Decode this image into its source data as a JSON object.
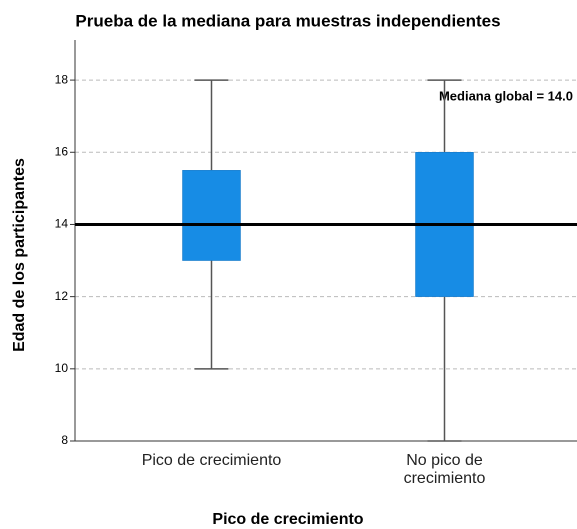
{
  "chart_data": {
    "type": "box",
    "title": "Prueba de la mediana para muestras independientes",
    "xlabel": "Pico de crecimiento",
    "ylabel": "Edad de los participantes",
    "categories": [
      "Pico de crecimiento",
      "No pico de crecimiento"
    ],
    "boxes": [
      {
        "min": 10,
        "q1": 13,
        "q3": 15.5,
        "max": 18
      },
      {
        "min": 8,
        "q1": 12,
        "q3": 16,
        "max": 18
      }
    ],
    "color": "#178ce5",
    "reference_line": 14,
    "annotation": "Mediana global = 14.0",
    "ylim": [
      8,
      19
    ],
    "yticks": [
      8,
      10,
      12,
      14,
      16,
      18
    ],
    "grid": true
  }
}
